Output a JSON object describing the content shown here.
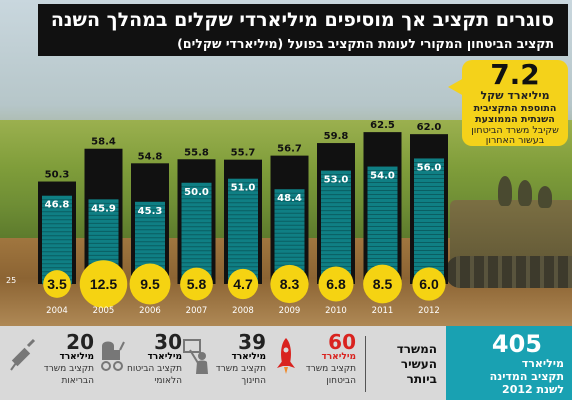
{
  "title": "סוגרים תקציב אך מוסיפים מיליארדי שקלים במהלך השנה",
  "subtitle": "תקציב הביטחון המקורי לעומת התקציב בפועל (מיליארדי שקלים)",
  "callout": {
    "value": "7.2",
    "line1": "מיליארד שקל",
    "line2": "התוספת התקציבית",
    "line3": "השנתית הממוצעת",
    "line4": "שקיבל משרד הביטחון",
    "line5": "בעשור האחרון"
  },
  "axis_note": "25",
  "chart_data": {
    "type": "bar",
    "categories": [
      "2004",
      "2005",
      "2006",
      "2007",
      "2008",
      "2009",
      "2010",
      "2011",
      "2012"
    ],
    "series": [
      {
        "values": [
          50.3,
          58.4,
          54.8,
          55.8,
          55.7,
          56.7,
          59.8,
          62.5,
          62.0
        ]
      },
      {
        "values": [
          46.8,
          45.9,
          45.3,
          50.0,
          51.0,
          48.4,
          53.0,
          54.0,
          56.0
        ]
      },
      {
        "values": [
          3.5,
          12.5,
          9.5,
          5.8,
          4.7,
          8.3,
          6.8,
          8.5,
          6.0
        ]
      }
    ],
    "ylim": [
      25,
      65
    ],
    "colors": {
      "actual": "#111111",
      "original": "#0f7f84",
      "addition": "#f5d312"
    }
  },
  "bottom": {
    "state_budget": {
      "value": "405",
      "line1": "מיליארד",
      "line2": "תקציב המדינה",
      "line3": "לשנת 2012"
    },
    "richest": {
      "line1": "המשרד",
      "line2": "העשיר",
      "line3": "ביותר"
    },
    "ministries": [
      {
        "value": "60",
        "unit": "מיליארד",
        "line1": "תקציב משרד",
        "line2": "הביטחון",
        "icon": "rocket-icon",
        "color": "#d9231f"
      },
      {
        "value": "39",
        "unit": "מיליארד",
        "line1": "תקציב משרד",
        "line2": "החינוך",
        "icon": "teacher-icon",
        "color": "#222222"
      },
      {
        "value": "30",
        "unit": "מיליארד",
        "line1": "תקציב הביטוח",
        "line2": "הלאומי",
        "icon": "baby-stroller-icon",
        "color": "#222222"
      },
      {
        "value": "20",
        "unit": "מיליארד",
        "line1": "תקציב משרד",
        "line2": "הבריאות",
        "icon": "syringe-icon",
        "color": "#222222"
      }
    ]
  }
}
